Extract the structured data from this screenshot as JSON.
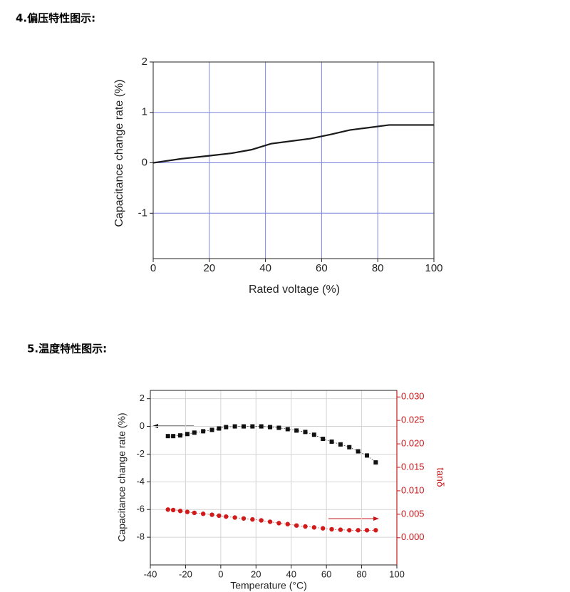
{
  "headings": [
    "4.偏压特性图示:",
    "5.温度特性图示:"
  ],
  "chart_data": [
    {
      "type": "line",
      "xlabel": "Rated voltage (%)",
      "ylabel": "Capacitance change rate (%)",
      "x": [
        0,
        10,
        20,
        28,
        35,
        42,
        56,
        63,
        70,
        84,
        100
      ],
      "series": [
        {
          "color": "#1a1a1a",
          "values": [
            0,
            0.08,
            0.14,
            0.19,
            0.26,
            0.38,
            0.48,
            0.56,
            0.65,
            0.75,
            0.75
          ]
        }
      ],
      "xlim": [
        0,
        100
      ],
      "xticks": [
        0,
        20,
        40,
        60,
        80,
        100
      ],
      "ylim": [
        -1.9,
        2
      ],
      "yticks": [
        -1,
        0,
        1,
        2
      ],
      "grid": true,
      "grid_color": "#7f86e0"
    },
    {
      "type": "scatter",
      "xlabel": "Temperature (°C)",
      "ylabel": "Capacitance change rate (%)",
      "y2label": "tanδ",
      "x": [
        -30,
        -27,
        -23,
        -19,
        -15,
        -10,
        -5,
        -1,
        3,
        8,
        13,
        18,
        23,
        28,
        33,
        38,
        43,
        48,
        53,
        58,
        63,
        68,
        73,
        78,
        83,
        88
      ],
      "series": [
        {
          "color": "#111111",
          "marker": "square",
          "values": [
            -0.7,
            -0.7,
            -0.65,
            -0.55,
            -0.45,
            -0.35,
            -0.25,
            -0.15,
            -0.05,
            0,
            0,
            0,
            0,
            -0.05,
            -0.1,
            -0.2,
            -0.3,
            -0.4,
            -0.6,
            -0.9,
            -1.1,
            -1.3,
            -1.5,
            -1.8,
            -2.1,
            -2.6
          ]
        },
        {
          "color": "#d11a1a",
          "marker": "circle",
          "axis": "y2",
          "values": [
            0.006,
            0.0059,
            0.0057,
            0.0055,
            0.0053,
            0.0051,
            0.0049,
            0.0047,
            0.0045,
            0.0043,
            0.0041,
            0.0039,
            0.0037,
            0.0034,
            0.0031,
            0.0029,
            0.0026,
            0.0024,
            0.0022,
            0.002,
            0.0018,
            0.0017,
            0.0016,
            0.0016,
            0.0016,
            0.0016
          ]
        }
      ],
      "xlim": [
        -40,
        100
      ],
      "xticks": [
        -40,
        -20,
        0,
        20,
        40,
        60,
        80,
        100
      ],
      "ylim": [
        -10,
        2.6
      ],
      "yticks": [
        -8,
        -6,
        -4,
        -2,
        0,
        2
      ],
      "y2lim": [
        -0.0058,
        0.0314
      ],
      "y2ticks": [
        {
          "value": 0,
          "label": "0.000"
        },
        0.005,
        {
          "value": 0.01,
          "label": "0.010"
        },
        0.015,
        {
          "value": 0.02,
          "label": "0.020"
        },
        0.025,
        {
          "value": 0.03,
          "label": "0.030"
        }
      ],
      "y2color": "#c8181c",
      "grid": true,
      "grid_color": "#d4d4d4"
    }
  ]
}
